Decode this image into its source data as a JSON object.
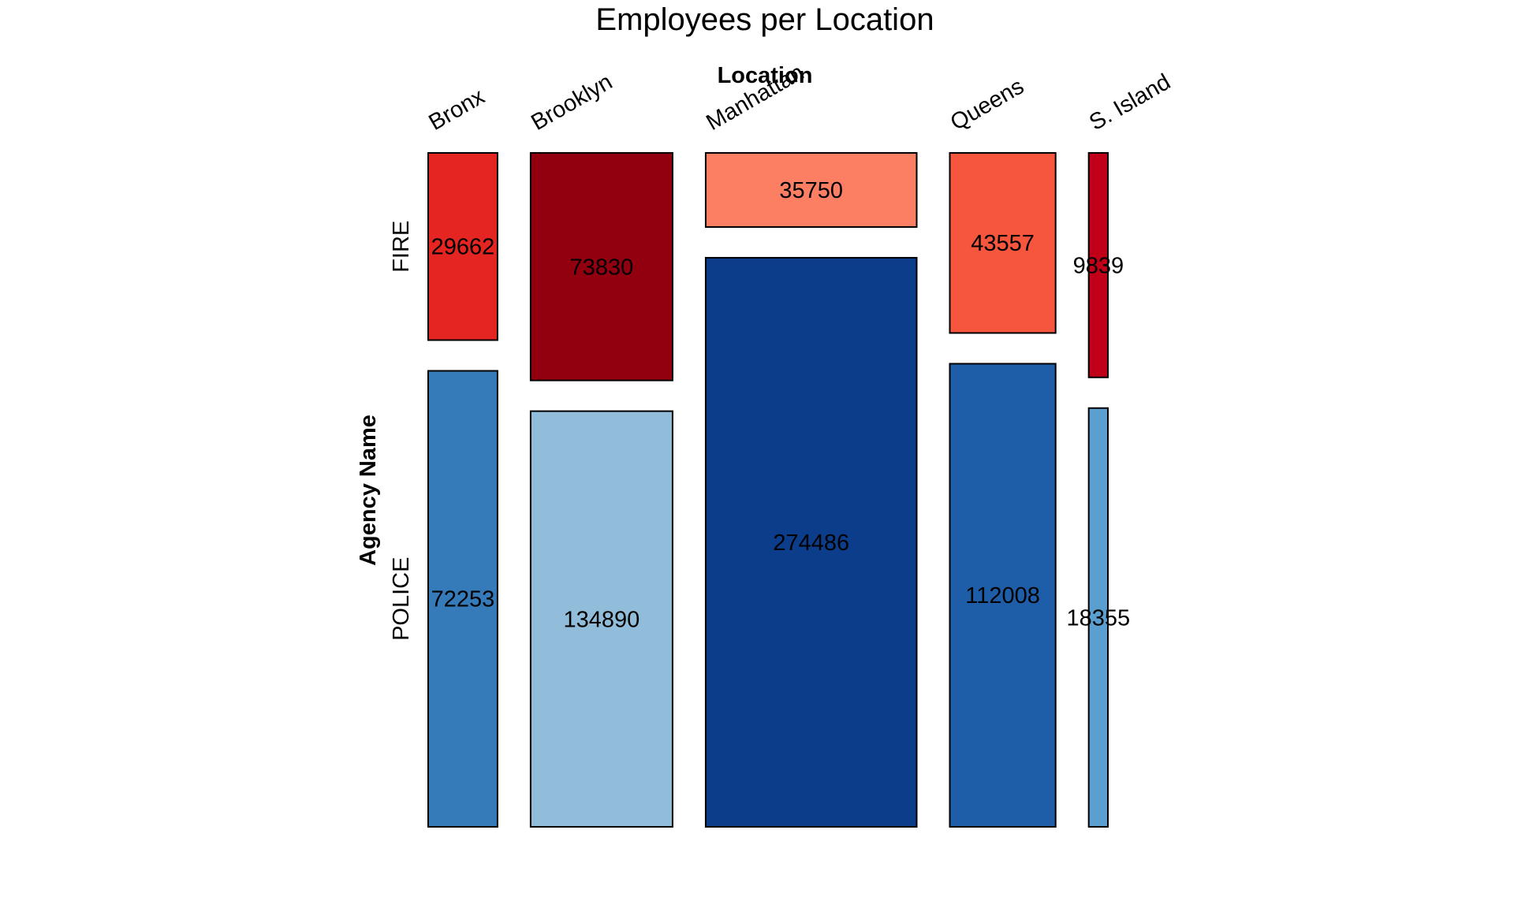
{
  "chart_data": {
    "type": "mosaic",
    "title": "Employees per Location",
    "xlabel": "Location",
    "ylabel": "Agency Name",
    "categories": [
      "Bronx",
      "Brooklyn",
      "Manhattan",
      "Queens",
      "S. Island"
    ],
    "rows": [
      "FIRE",
      "POLICE"
    ],
    "series": [
      {
        "name": "FIRE",
        "values": [
          29662,
          73830,
          35750,
          43557,
          9839
        ]
      },
      {
        "name": "POLICE",
        "values": [
          72253,
          134890,
          274486,
          112008,
          18355
        ]
      }
    ],
    "colors": {
      "FIRE": [
        "#e52521",
        "#920010",
        "#fc7f63",
        "#f6553e",
        "#bf0018"
      ],
      "POLICE": [
        "#357bba",
        "#92bdda",
        "#0c3d8a",
        "#1e5ea8",
        "#5a9fcf"
      ]
    },
    "legend": "none",
    "grid": false
  }
}
